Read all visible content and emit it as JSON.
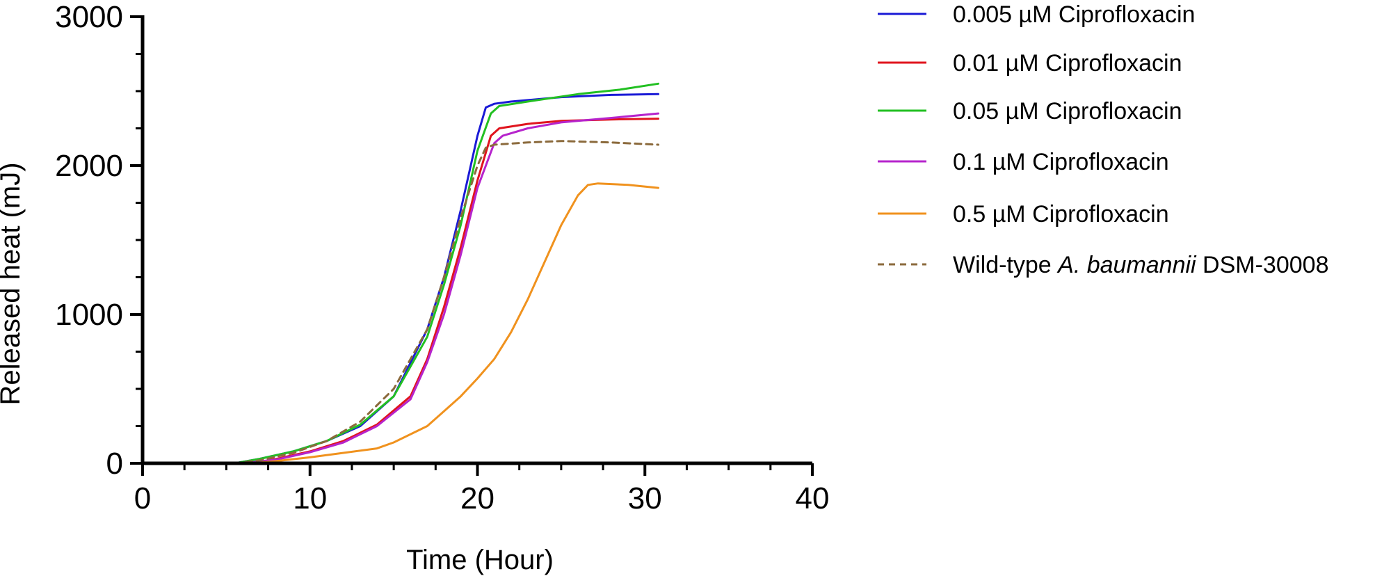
{
  "chart_data": {
    "type": "line",
    "xlabel": "Time (Hour)",
    "ylabel": "Released heat (mJ)",
    "xlim": [
      0,
      40
    ],
    "ylim": [
      0,
      3000
    ],
    "x_ticks": [
      0,
      10,
      20,
      30,
      40
    ],
    "y_ticks": [
      0,
      1000,
      2000,
      3000
    ],
    "x_tick_labels": [
      "0",
      "10",
      "20",
      "30",
      "40"
    ],
    "y_tick_labels": [
      "0",
      "1000",
      "2000",
      "3000"
    ],
    "grid": false,
    "legend_position": "right",
    "series": [
      {
        "name": "0.005 µM Ciprofloxacin",
        "color": "#1a1ad6",
        "dash": "solid",
        "points": [
          [
            4.3,
            0
          ],
          [
            5.5,
            0
          ],
          [
            7,
            30
          ],
          [
            9,
            80
          ],
          [
            11,
            150
          ],
          [
            13,
            250
          ],
          [
            15,
            450
          ],
          [
            17,
            900
          ],
          [
            18,
            1250
          ],
          [
            19,
            1700
          ],
          [
            20,
            2200
          ],
          [
            20.5,
            2390
          ],
          [
            21,
            2415
          ],
          [
            22,
            2430
          ],
          [
            25,
            2460
          ],
          [
            28,
            2475
          ],
          [
            30.8,
            2480
          ]
        ]
      },
      {
        "name": "0.01 µM Ciprofloxacin",
        "color": "#e0141e",
        "dash": "solid",
        "points": [
          [
            6.5,
            0
          ],
          [
            8,
            30
          ],
          [
            10,
            80
          ],
          [
            12,
            150
          ],
          [
            14,
            260
          ],
          [
            16,
            450
          ],
          [
            17,
            700
          ],
          [
            18,
            1050
          ],
          [
            19,
            1450
          ],
          [
            20,
            1900
          ],
          [
            20.8,
            2200
          ],
          [
            21.3,
            2250
          ],
          [
            23,
            2280
          ],
          [
            25,
            2300
          ],
          [
            28,
            2310
          ],
          [
            30.8,
            2315
          ]
        ]
      },
      {
        "name": "0.05 µM Ciprofloxacin",
        "color": "#22c022",
        "dash": "solid",
        "points": [
          [
            5.5,
            0
          ],
          [
            7,
            30
          ],
          [
            9,
            80
          ],
          [
            11,
            150
          ],
          [
            13,
            260
          ],
          [
            15,
            450
          ],
          [
            17,
            850
          ],
          [
            18,
            1200
          ],
          [
            19,
            1600
          ],
          [
            20,
            2100
          ],
          [
            20.8,
            2350
          ],
          [
            21.3,
            2400
          ],
          [
            23,
            2430
          ],
          [
            26,
            2480
          ],
          [
            28.5,
            2510
          ],
          [
            30.8,
            2550
          ]
        ]
      },
      {
        "name": "0.1 µM Ciprofloxacin",
        "color": "#b624cc",
        "dash": "solid",
        "points": [
          [
            6,
            0
          ],
          [
            8,
            25
          ],
          [
            10,
            75
          ],
          [
            12,
            140
          ],
          [
            14,
            250
          ],
          [
            16,
            430
          ],
          [
            17,
            680
          ],
          [
            18,
            1000
          ],
          [
            19,
            1400
          ],
          [
            20,
            1850
          ],
          [
            21,
            2150
          ],
          [
            21.5,
            2200
          ],
          [
            23,
            2250
          ],
          [
            25,
            2290
          ],
          [
            28,
            2320
          ],
          [
            30.8,
            2350
          ]
        ]
      },
      {
        "name": "0.5 µM Ciprofloxacin",
        "color": "#f0921e",
        "dash": "solid",
        "points": [
          [
            6.5,
            0
          ],
          [
            8,
            15
          ],
          [
            10,
            40
          ],
          [
            12,
            70
          ],
          [
            14,
            100
          ],
          [
            15,
            140
          ],
          [
            17,
            250
          ],
          [
            18,
            350
          ],
          [
            19,
            450
          ],
          [
            20,
            570
          ],
          [
            21,
            700
          ],
          [
            22,
            880
          ],
          [
            23,
            1100
          ],
          [
            24,
            1350
          ],
          [
            25,
            1600
          ],
          [
            26,
            1800
          ],
          [
            26.6,
            1870
          ],
          [
            27.2,
            1880
          ],
          [
            29,
            1870
          ],
          [
            30.8,
            1850
          ]
        ]
      },
      {
        "name": "Wild-type A. baumannii DSM-30008",
        "name_prefix": "Wild-type ",
        "name_italic": "A. baumannii",
        "name_suffix": " DSM-30008",
        "color": "#8b6a3c",
        "dash": "dashed",
        "points": [
          [
            5.5,
            0
          ],
          [
            7,
            20
          ],
          [
            9,
            70
          ],
          [
            11,
            150
          ],
          [
            13,
            280
          ],
          [
            15,
            500
          ],
          [
            17,
            900
          ],
          [
            18,
            1250
          ],
          [
            19,
            1650
          ],
          [
            20,
            2000
          ],
          [
            20.5,
            2120
          ],
          [
            21,
            2140
          ],
          [
            23,
            2155
          ],
          [
            25,
            2165
          ],
          [
            28,
            2155
          ],
          [
            30.8,
            2140
          ]
        ]
      }
    ]
  }
}
